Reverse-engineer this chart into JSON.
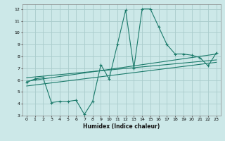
{
  "xlabel": "Humidex (Indice chaleur)",
  "bg_color": "#cce8e8",
  "grid_color": "#aacccc",
  "line_color": "#1a7a6a",
  "xlim": [
    -0.5,
    23.5
  ],
  "ylim": [
    3,
    12.4
  ],
  "xticks": [
    0,
    1,
    2,
    3,
    4,
    5,
    6,
    7,
    8,
    9,
    10,
    11,
    12,
    13,
    14,
    15,
    16,
    17,
    18,
    19,
    20,
    21,
    22,
    23
  ],
  "yticks": [
    3,
    4,
    5,
    6,
    7,
    8,
    9,
    10,
    11,
    12
  ],
  "series1_x": [
    0,
    1,
    2,
    3,
    4,
    5,
    6,
    7,
    8,
    9,
    10,
    11,
    12,
    13,
    14,
    15,
    16,
    17,
    18,
    19,
    20,
    21,
    22,
    23
  ],
  "series1_y": [
    5.8,
    6.1,
    6.2,
    4.1,
    4.2,
    4.2,
    4.3,
    3.1,
    4.2,
    7.3,
    6.1,
    9.0,
    11.9,
    7.0,
    12.0,
    12.0,
    10.5,
    9.0,
    8.2,
    8.2,
    8.1,
    7.9,
    7.2,
    8.3
  ],
  "series2_x": [
    0,
    23
  ],
  "series2_y": [
    5.9,
    8.2
  ],
  "series3_x": [
    0,
    23
  ],
  "series3_y": [
    6.2,
    7.7
  ],
  "series4_x": [
    0,
    23
  ],
  "series4_y": [
    5.5,
    7.5
  ]
}
